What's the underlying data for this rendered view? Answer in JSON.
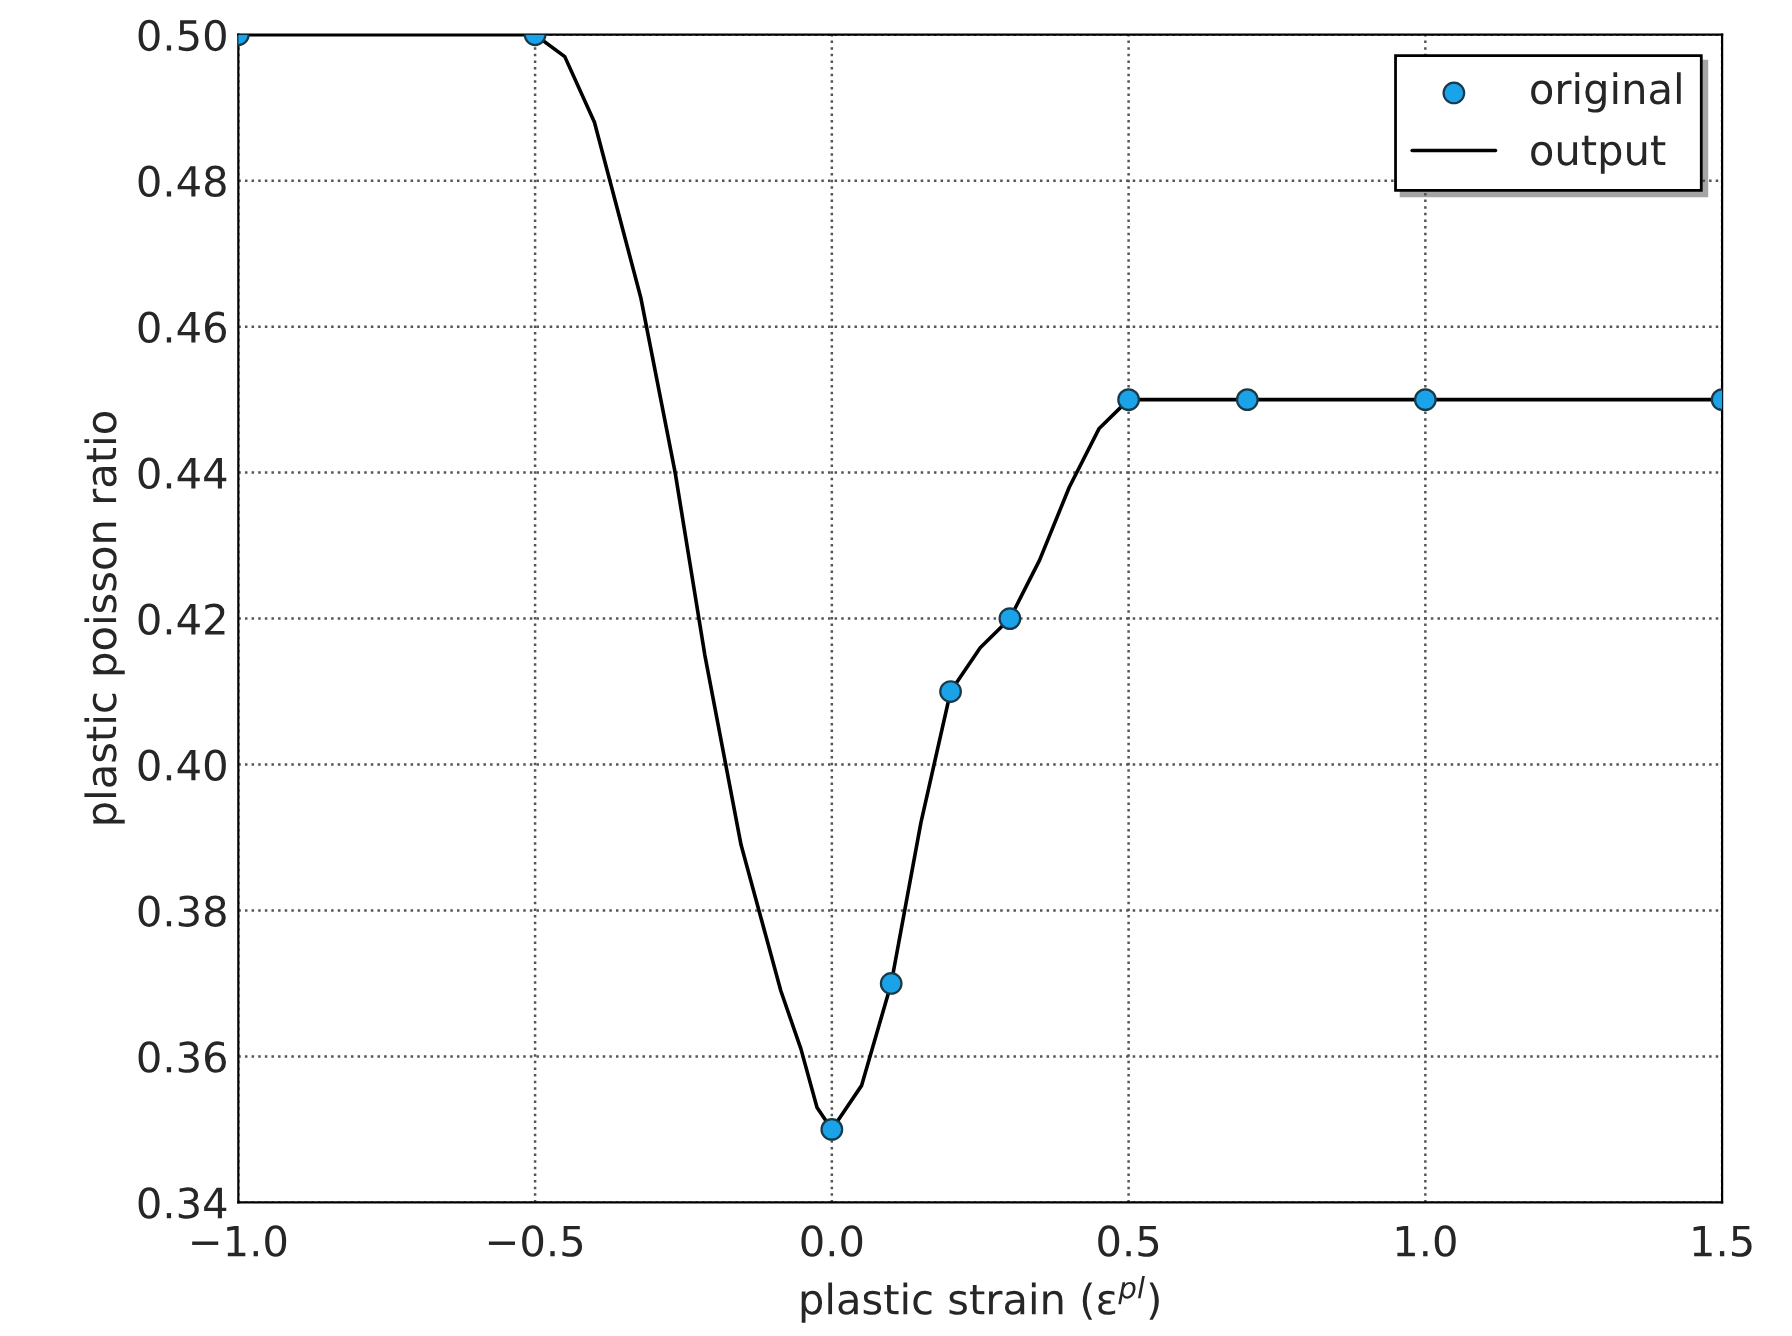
{
  "chart_data": {
    "type": "line",
    "xlabel": "plastic strain (ε$^{pl}$)",
    "ylabel": "plastic poisson ratio",
    "series": [
      {
        "name": "original",
        "type": "scatter",
        "marker": "circle",
        "color": "#1aa3e8",
        "x": [
          -1.0,
          -0.5,
          0.0,
          0.1,
          0.2,
          0.3,
          0.5,
          0.7,
          1.0,
          1.5
        ],
        "values": [
          0.5,
          0.5,
          0.35,
          0.37,
          0.41,
          0.42,
          0.45,
          0.45,
          0.45,
          0.45
        ]
      },
      {
        "name": "output",
        "marker": "none",
        "line_style": "solid",
        "color": "#000000",
        "x": [
          -1.0,
          -0.5,
          -0.45,
          -0.4,
          -0.322,
          -0.264,
          -0.214,
          -0.153,
          -0.086,
          -0.052,
          -0.025,
          0.0,
          0.05,
          0.1,
          0.15,
          0.2,
          0.25,
          0.3,
          0.35,
          0.4,
          0.45,
          0.5,
          0.7,
          1.0,
          1.5
        ],
        "values": [
          0.5,
          0.5,
          0.497,
          0.488,
          0.464,
          0.44,
          0.415,
          0.389,
          0.369,
          0.361,
          0.353,
          0.35,
          0.356,
          0.37,
          0.392,
          0.41,
          0.416,
          0.42,
          0.428,
          0.438,
          0.446,
          0.45,
          0.45,
          0.45,
          0.45
        ]
      }
    ],
    "xlim": [
      -1.0,
      1.5
    ],
    "ylim": [
      0.34,
      0.5
    ],
    "xticks": [
      {
        "value": -1.0,
        "label": "−1.0"
      },
      {
        "value": -0.5,
        "label": "−0.5"
      },
      {
        "value": 0.0,
        "label": "0.0"
      },
      {
        "value": 0.5,
        "label": "0.5"
      },
      {
        "value": 1.0,
        "label": "1.0"
      },
      {
        "value": 1.5,
        "label": "1.5"
      }
    ],
    "yticks": [
      {
        "value": 0.34,
        "label": "0.34"
      },
      {
        "value": 0.36,
        "label": "0.36"
      },
      {
        "value": 0.38,
        "label": "0.38"
      },
      {
        "value": 0.4,
        "label": "0.40"
      },
      {
        "value": 0.42,
        "label": "0.42"
      },
      {
        "value": 0.44,
        "label": "0.44"
      },
      {
        "value": 0.46,
        "label": "0.46"
      },
      {
        "value": 0.48,
        "label": "0.48"
      },
      {
        "value": 0.5,
        "label": "0.50"
      }
    ],
    "grid": true,
    "legend": "top right"
  }
}
